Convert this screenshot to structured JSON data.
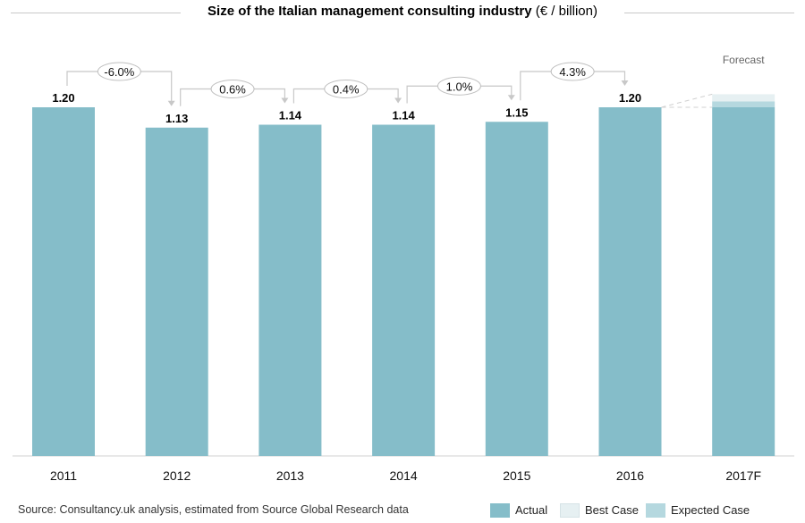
{
  "chart_data": {
    "type": "bar",
    "title": "Size of the Italian management consulting industry",
    "title_unit": "(€ / billion)",
    "categories": [
      "2011",
      "2012",
      "2013",
      "2014",
      "2015",
      "2016",
      "2017F"
    ],
    "series": [
      {
        "name": "Actual",
        "values": [
          1.2,
          1.13,
          1.14,
          1.14,
          1.15,
          1.2,
          1.2
        ]
      },
      {
        "name": "Expected Case",
        "values": [
          null,
          null,
          null,
          null,
          null,
          null,
          0.02
        ]
      },
      {
        "name": "Best Case",
        "values": [
          null,
          null,
          null,
          null,
          null,
          null,
          0.025
        ]
      }
    ],
    "data_labels": [
      "1.20",
      "1.13",
      "1.14",
      "1.14",
      "1.15",
      "1.20",
      ""
    ],
    "growth_annotations": [
      {
        "from": "2011",
        "to": "2012",
        "label": "-6.0%"
      },
      {
        "from": "2012",
        "to": "2013",
        "label": "0.6%"
      },
      {
        "from": "2013",
        "to": "2014",
        "label": "0.4%"
      },
      {
        "from": "2014",
        "to": "2015",
        "label": "1.0%"
      },
      {
        "from": "2015",
        "to": "2016",
        "label": "4.3%"
      }
    ],
    "forecast_label": "Forecast",
    "ylim": [
      0,
      1.24
    ],
    "grid": false,
    "legend": "bottom-right",
    "colors": {
      "actual": "#85bdc9",
      "best_case": "#e6f0f2",
      "expected_case": "#b5d8df",
      "connector": "#c8c8c8"
    }
  },
  "source": "Source: Consultancy.uk analysis, estimated from Source Global Research data",
  "legend_items": [
    {
      "label": "Actual",
      "color": "#85bdc9"
    },
    {
      "label": "Best Case",
      "color": "#e6f0f2"
    },
    {
      "label": "Expected Case",
      "color": "#b5d8df"
    }
  ]
}
